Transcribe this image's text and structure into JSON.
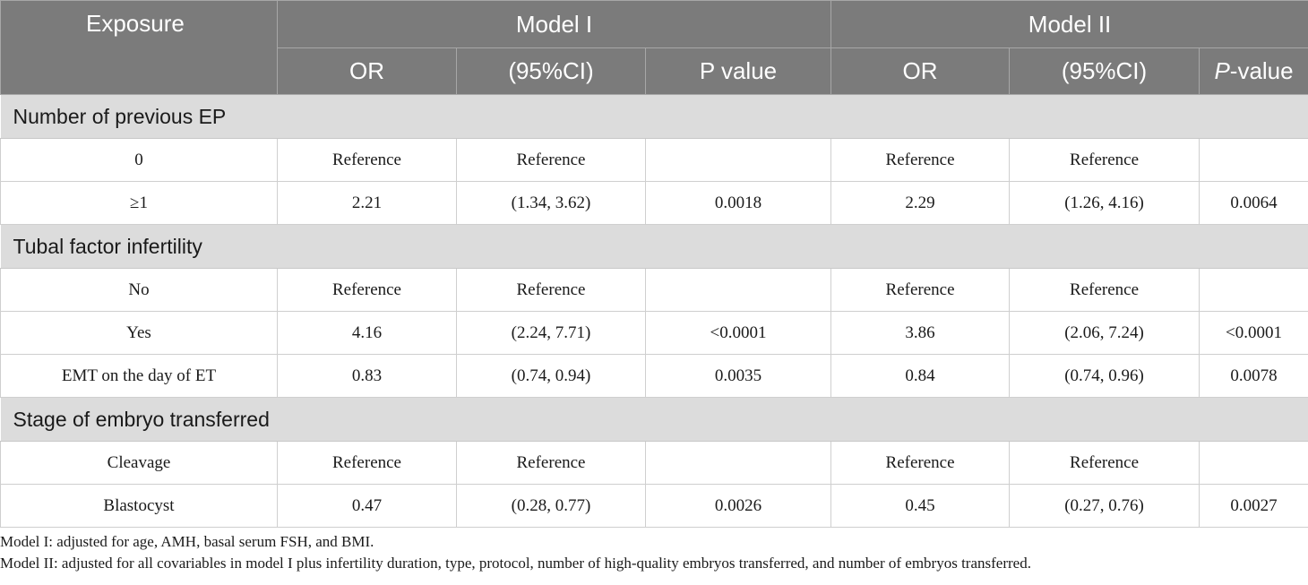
{
  "header": {
    "exposure": "Exposure",
    "model_i": "Model I",
    "model_ii": "Model II",
    "or_label": "OR",
    "ci_label": "(95%CI)",
    "p_label_i": "P value",
    "p_label_ii_italic": "P",
    "p_label_ii_rest": "-value"
  },
  "sections": {
    "s1": "Number of previous EP",
    "s2": "Tubal factor infertility",
    "s3": "Stage of embryo transferred"
  },
  "rows": {
    "r1": {
      "label": "0",
      "or1": "Reference",
      "ci1": "Reference",
      "p1": "",
      "or2": "Reference",
      "ci2": "Reference",
      "p2": ""
    },
    "r2": {
      "label": "≥1",
      "or1": "2.21",
      "ci1": "(1.34, 3.62)",
      "p1": "0.0018",
      "or2": "2.29",
      "ci2": "(1.26, 4.16)",
      "p2": "0.0064"
    },
    "r3": {
      "label": "No",
      "or1": "Reference",
      "ci1": "Reference",
      "p1": "",
      "or2": "Reference",
      "ci2": "Reference",
      "p2": ""
    },
    "r4": {
      "label": "Yes",
      "or1": "4.16",
      "ci1": "(2.24, 7.71)",
      "p1": "<0.0001",
      "or2": "3.86",
      "ci2": "(2.06, 7.24)",
      "p2": "<0.0001"
    },
    "r5": {
      "label": "EMT on the day of ET",
      "or1": "0.83",
      "ci1": "(0.74, 0.94)",
      "p1": "0.0035",
      "or2": "0.84",
      "ci2": "(0.74, 0.96)",
      "p2": "0.0078"
    },
    "r6": {
      "label": "Cleavage",
      "or1": "Reference",
      "ci1": "Reference",
      "p1": "",
      "or2": "Reference",
      "ci2": "Reference",
      "p2": ""
    },
    "r7": {
      "label": "Blastocyst",
      "or1": "0.47",
      "ci1": "(0.28, 0.77)",
      "p1": "0.0026",
      "or2": "0.45",
      "ci2": "(0.27, 0.76)",
      "p2": "0.0027"
    }
  },
  "notes": {
    "n1": "Model I: adjusted for age, AMH, basal serum FSH, and BMI.",
    "n2": "Model II: adjusted for all covariables in model I plus infertility duration, type, protocol, number of high-quality embryos transferred, and number of embryos transferred."
  }
}
